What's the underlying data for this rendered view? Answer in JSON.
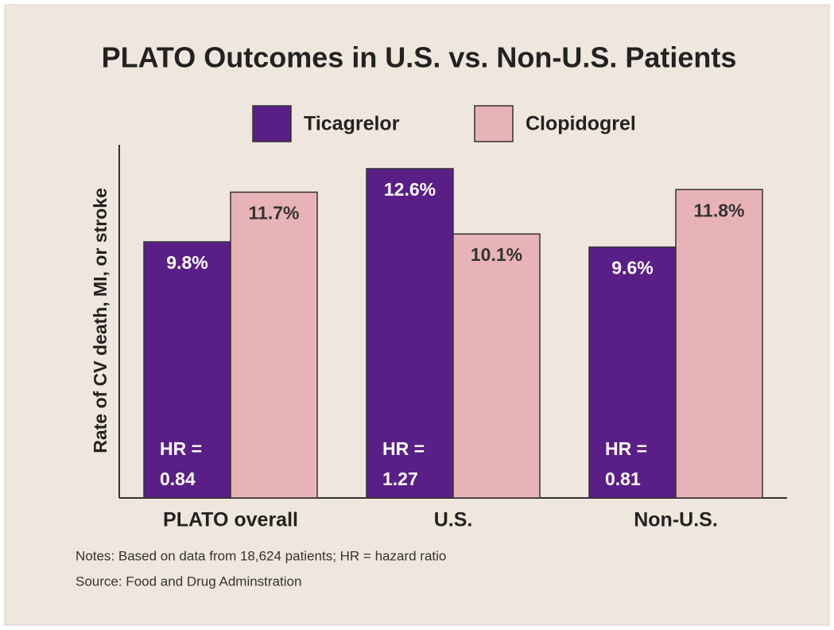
{
  "chart_data": {
    "type": "bar",
    "title": "PLATO Outcomes in U.S. vs. Non-U.S. Patients",
    "y_label": "Rate of CV death, MI, or stroke",
    "categories": [
      "PLATO overall",
      "U.S.",
      "Non-U.S."
    ],
    "series": [
      {
        "name": "Ticagrelor",
        "color": "#5a1f86",
        "values": [
          9.8,
          12.6,
          9.6
        ],
        "value_labels": [
          "9.8%",
          "12.6%",
          "9.6%"
        ]
      },
      {
        "name": "Clopidogrel",
        "color": "#e8b3b7",
        "values": [
          11.7,
          10.1,
          11.8
        ],
        "value_labels": [
          "11.7%",
          "10.1%",
          "11.8%"
        ]
      }
    ],
    "hr_label": "HR =",
    "hr": [
      0.84,
      1.27,
      0.81
    ],
    "notes": "Notes: Based on data from 18,624 patients; HR = hazard ratio",
    "source": "Source: Food and Drug Adminstration"
  }
}
